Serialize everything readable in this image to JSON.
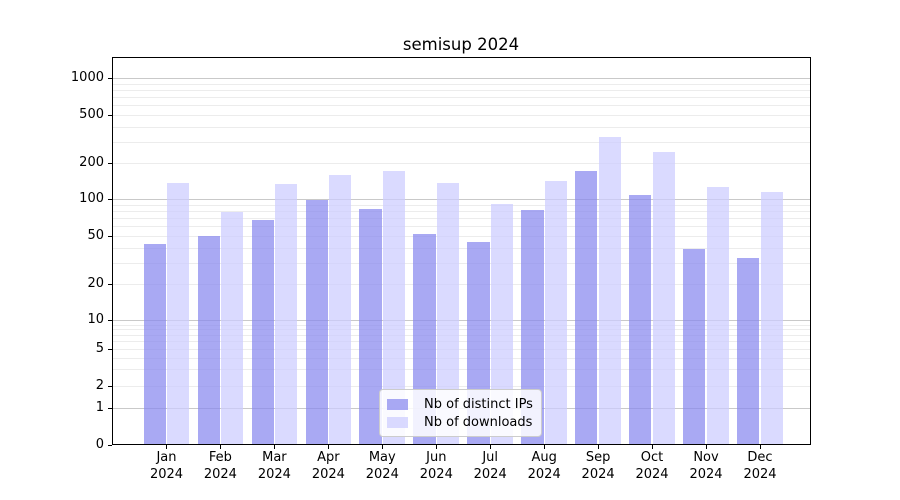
{
  "title": "semisup 2024",
  "chart_data": {
    "type": "bar",
    "title": "semisup 2024",
    "xlabel": "",
    "ylabel": "",
    "yscale": "symlog",
    "ylim": [
      0,
      1500
    ],
    "yticks": [
      0,
      1,
      2,
      5,
      10,
      20,
      50,
      100,
      200,
      500,
      1000
    ],
    "grid": true,
    "legend_position": "lower center",
    "categories": [
      "Jan 2024",
      "Feb 2024",
      "Mar 2024",
      "Apr 2024",
      "May 2024",
      "Jun 2024",
      "Jul 2024",
      "Aug 2024",
      "Sep 2024",
      "Oct 2024",
      "Nov 2024",
      "Dec 2024"
    ],
    "series": [
      {
        "name": "Nb of distinct IPs",
        "color": "rgba(136,136,238,0.72)",
        "values": [
          43,
          50,
          67,
          99,
          84,
          52,
          44,
          81,
          170,
          109,
          39,
          33
        ]
      },
      {
        "name": "Nb of downloads",
        "color": "rgba(204,204,255,0.72)",
        "values": [
          137,
          78,
          133,
          160,
          172,
          136,
          91,
          143,
          325,
          246,
          127,
          115
        ]
      }
    ]
  },
  "colors": {
    "bar_ips": "rgba(136,136,238,0.72)",
    "bar_downloads": "rgba(204,204,255,0.72)",
    "grid_minor": "#ececec",
    "grid_major": "#c9c9c9",
    "spine": "#000000",
    "background": "#ffffff"
  }
}
